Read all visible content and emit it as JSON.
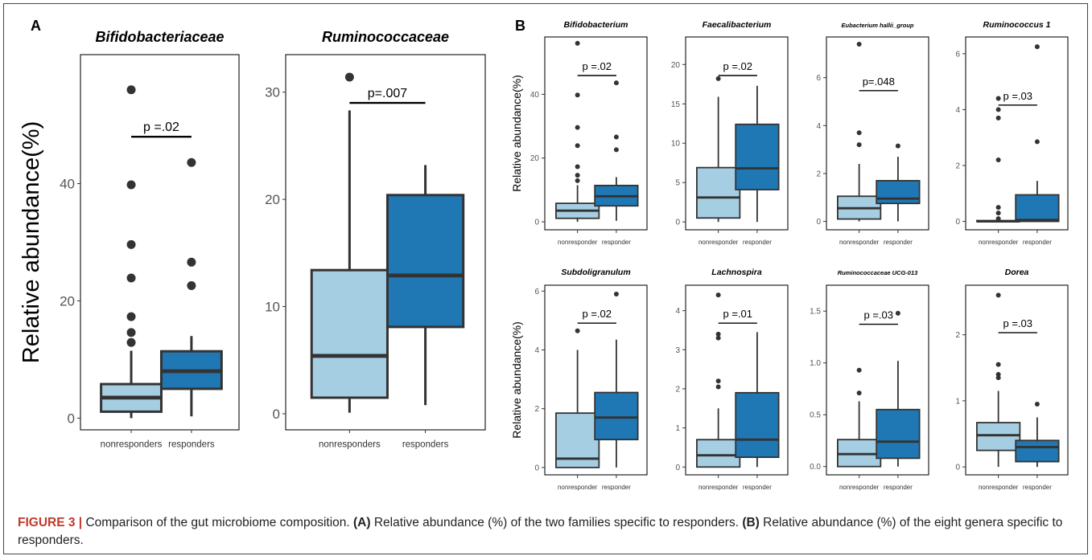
{
  "figure": {
    "panel_labels": [
      "A",
      "B"
    ],
    "caption": {
      "label": "FIGURE 3 |",
      "text_1": " Comparison of the gut microbiome composition. ",
      "a_tag": "(A)",
      "text_2": " Relative abundance (%) of the two families specific to responders. ",
      "b_tag": "(B)",
      "text_3": " Relative abundance (%) of the eight genera specific to responders."
    }
  },
  "colors": {
    "nonresponder": "#a6cee3",
    "responder": "#1f78b4",
    "line": "#333333"
  },
  "chart_data": [
    {
      "type": "boxplot",
      "panel": "A",
      "title": "Bifidobacteriaceae",
      "ylabel": "Relative abundance(%)",
      "xlabel": "",
      "categories": [
        "nonresponders",
        "responders"
      ],
      "yticks": [
        0,
        20,
        40
      ],
      "ylim": [
        -2,
        62
      ],
      "boxes": [
        {
          "whisker_low": 0,
          "q1": 1.1,
          "median": 3.5,
          "q3": 5.8,
          "whisker_high": 11.5,
          "outliers": [
            12.9,
            14.6,
            17.3,
            23.9,
            29.6,
            39.8,
            56
          ]
        },
        {
          "whisker_low": 0.3,
          "q1": 5,
          "median": 8,
          "q3": 11.4,
          "whisker_high": 14,
          "outliers": [
            22.6,
            26.6,
            43.6
          ]
        }
      ],
      "annotation": "p =.02"
    },
    {
      "type": "boxplot",
      "panel": "A",
      "title": "Ruminococcaceae",
      "ylabel": "",
      "xlabel": "",
      "categories": [
        "nonresponders",
        "responders"
      ],
      "yticks": [
        0,
        10,
        20,
        30
      ],
      "ylim": [
        -1.5,
        33.5
      ],
      "boxes": [
        {
          "whisker_low": 0.1,
          "q1": 1.5,
          "median": 5.4,
          "q3": 13.4,
          "whisker_high": 28.3,
          "outliers": [
            31.4
          ]
        },
        {
          "whisker_low": 0.8,
          "q1": 8.1,
          "median": 12.9,
          "q3": 20.4,
          "whisker_high": 23.2,
          "outliers": []
        }
      ],
      "annotation": "p=.007"
    },
    {
      "type": "boxplot",
      "panel": "B",
      "title": "Bifidobacterium",
      "ylabel": "Relative abundance(%)",
      "xlabel": "",
      "categories": [
        "nonresponder",
        "responder"
      ],
      "yticks": [
        0,
        20,
        40
      ],
      "ylim": [
        -2.5,
        58
      ],
      "boxes": [
        {
          "whisker_low": 0,
          "q1": 1.1,
          "median": 3.5,
          "q3": 5.8,
          "whisker_high": 11.5,
          "outliers": [
            12.9,
            14.6,
            17.3,
            23.9,
            29.6,
            39.8,
            56
          ]
        },
        {
          "whisker_low": 0.3,
          "q1": 5,
          "median": 8,
          "q3": 11.4,
          "whisker_high": 14,
          "outliers": [
            22.6,
            26.6,
            43.6
          ]
        }
      ],
      "annotation": "p =.02"
    },
    {
      "type": "boxplot",
      "panel": "B",
      "title": "Faecalibacterium",
      "ylabel": "",
      "xlabel": "",
      "categories": [
        "nonresponder",
        "responder"
      ],
      "yticks": [
        0,
        5,
        10,
        15,
        20
      ],
      "ylim": [
        -1,
        23.5
      ],
      "boxes": [
        {
          "whisker_low": 0,
          "q1": 0.5,
          "median": 3.1,
          "q3": 6.9,
          "whisker_high": 15.9,
          "outliers": [
            18.2
          ]
        },
        {
          "whisker_low": 0,
          "q1": 4.1,
          "median": 6.8,
          "q3": 12.4,
          "whisker_high": 17.3,
          "outliers": []
        }
      ],
      "annotation": "p =.02"
    },
    {
      "type": "boxplot",
      "panel": "B",
      "title": "Eubacterium hallii_group",
      "ylabel": "",
      "xlabel": "",
      "categories": [
        "nonresponder",
        "responder"
      ],
      "yticks": [
        0,
        2,
        4,
        6
      ],
      "ylim": [
        -0.35,
        7.7
      ],
      "boxes": [
        {
          "whisker_low": 0,
          "q1": 0.1,
          "median": 0.55,
          "q3": 1.05,
          "whisker_high": 2.4,
          "outliers": [
            3.2,
            3.7,
            7.4
          ]
        },
        {
          "whisker_low": 0,
          "q1": 0.75,
          "median": 0.95,
          "q3": 1.7,
          "whisker_high": 2.7,
          "outliers": [
            3.15
          ]
        }
      ],
      "annotation": "p=.048"
    },
    {
      "type": "boxplot",
      "panel": "B",
      "title": "Ruminococcus 1",
      "ylabel": "",
      "xlabel": "",
      "categories": [
        "nonresponder",
        "responder"
      ],
      "yticks": [
        0,
        2,
        4,
        6
      ],
      "ylim": [
        -0.3,
        6.6
      ],
      "boxes": [
        {
          "whisker_low": 0,
          "q1": 0,
          "median": 0,
          "q3": 0.03,
          "whisker_high": 0.05,
          "outliers": [
            0.1,
            0.3,
            0.5,
            2.2,
            3.7,
            4.0,
            4.4
          ]
        },
        {
          "whisker_low": 0,
          "q1": 0,
          "median": 0.05,
          "q3": 0.95,
          "whisker_high": 1.45,
          "outliers": [
            2.85,
            6.25
          ]
        }
      ],
      "annotation": "p =.03"
    },
    {
      "type": "boxplot",
      "panel": "B",
      "title": "Subdoligranulum",
      "ylabel": "Relative abundance(%)",
      "xlabel": "",
      "categories": [
        "nonresponder",
        "responder"
      ],
      "yticks": [
        0,
        2,
        4,
        6
      ],
      "ylim": [
        -0.25,
        6.2
      ],
      "boxes": [
        {
          "whisker_low": 0,
          "q1": 0,
          "median": 0.3,
          "q3": 1.85,
          "whisker_high": 4.0,
          "outliers": [
            4.65
          ]
        },
        {
          "whisker_low": 0,
          "q1": 0.95,
          "median": 1.7,
          "q3": 2.55,
          "whisker_high": 4.35,
          "outliers": [
            5.9
          ]
        }
      ],
      "annotation": "p =.02"
    },
    {
      "type": "boxplot",
      "panel": "B",
      "title": "Lachnospira",
      "ylabel": "",
      "xlabel": "",
      "categories": [
        "nonresponder",
        "responder"
      ],
      "yticks": [
        0,
        1,
        2,
        3,
        4
      ],
      "ylim": [
        -0.2,
        4.65
      ],
      "boxes": [
        {
          "whisker_low": 0,
          "q1": 0,
          "median": 0.3,
          "q3": 0.7,
          "whisker_high": 1.5,
          "outliers": [
            2.05,
            2.2,
            3.3,
            3.4,
            4.4
          ]
        },
        {
          "whisker_low": 0,
          "q1": 0.25,
          "median": 0.7,
          "q3": 1.9,
          "whisker_high": 3.45,
          "outliers": []
        }
      ],
      "annotation": "p =.01"
    },
    {
      "type": "boxplot",
      "panel": "B",
      "title": "Ruminococcaceae UCG-013",
      "ylabel": "",
      "xlabel": "",
      "categories": [
        "nonresponder",
        "responder"
      ],
      "yticks": [
        0.0,
        0.5,
        1.0,
        1.5
      ],
      "ylim": [
        -0.08,
        1.75
      ],
      "boxes": [
        {
          "whisker_low": 0,
          "q1": 0,
          "median": 0.12,
          "q3": 0.26,
          "whisker_high": 0.63,
          "outliers": [
            0.71,
            0.93
          ]
        },
        {
          "whisker_low": 0,
          "q1": 0.08,
          "median": 0.24,
          "q3": 0.55,
          "whisker_high": 1.02,
          "outliers": [
            1.48
          ]
        }
      ],
      "annotation": "p =.03"
    },
    {
      "type": "boxplot",
      "panel": "B",
      "title": "Dorea",
      "ylabel": "",
      "xlabel": "",
      "categories": [
        "nonresponder",
        "responder"
      ],
      "yticks": [
        0,
        1,
        2
      ],
      "ylim": [
        -0.12,
        2.75
      ],
      "boxes": [
        {
          "whisker_low": 0,
          "q1": 0.25,
          "median": 0.48,
          "q3": 0.67,
          "whisker_high": 1.15,
          "outliers": [
            1.35,
            1.4,
            1.55,
            2.6
          ]
        },
        {
          "whisker_low": 0,
          "q1": 0.08,
          "median": 0.3,
          "q3": 0.4,
          "whisker_high": 0.75,
          "outliers": [
            0.95
          ]
        }
      ],
      "annotation": "p =.03"
    }
  ]
}
